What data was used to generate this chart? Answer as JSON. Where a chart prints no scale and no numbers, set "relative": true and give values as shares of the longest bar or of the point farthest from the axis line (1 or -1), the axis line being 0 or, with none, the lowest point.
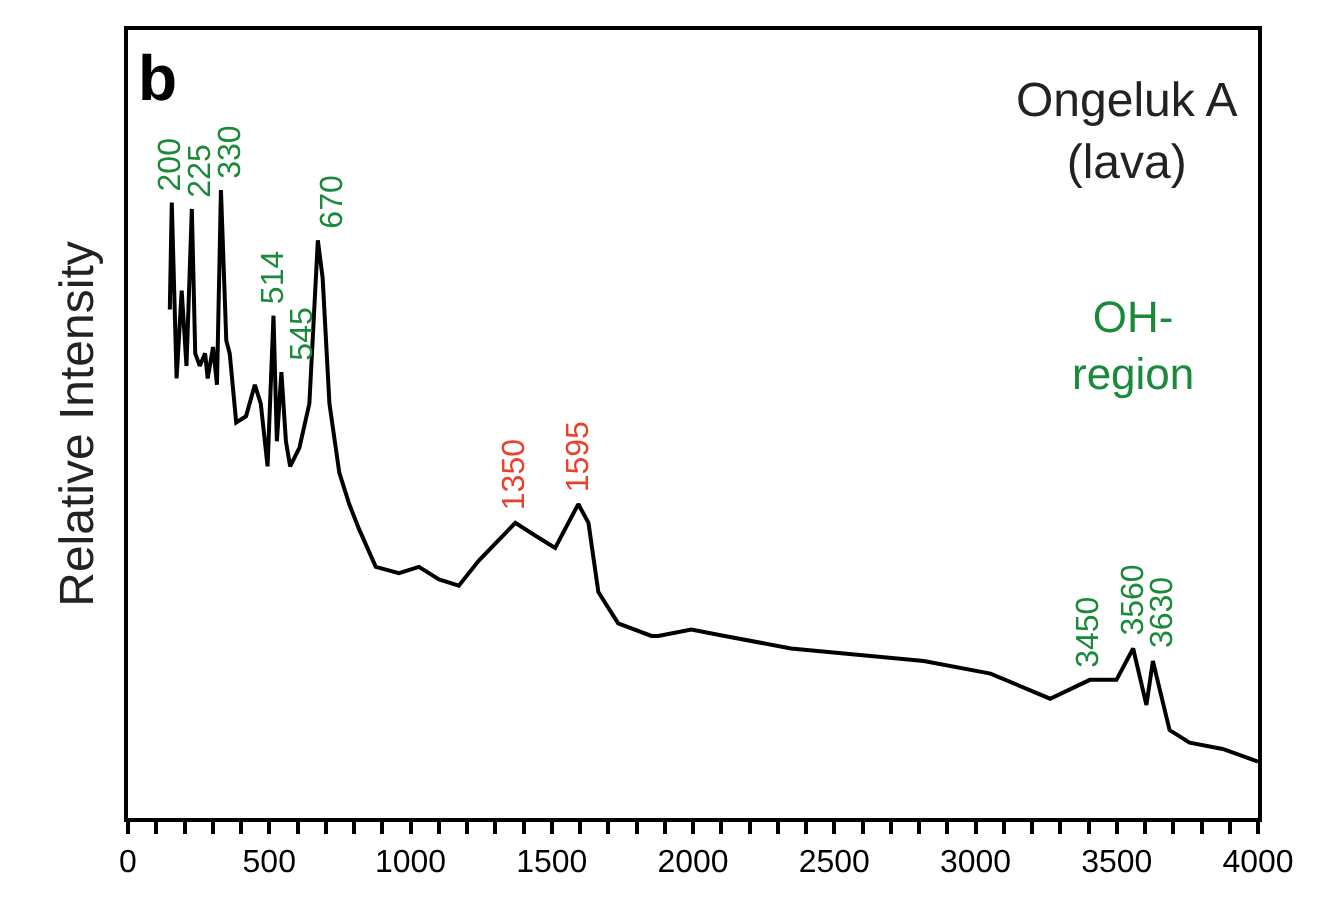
{
  "chart_data": {
    "type": "line",
    "relative": true,
    "ylabel": "Relative Intensity",
    "tick_labels": "x",
    "marker": "none",
    "line_style": "solid",
    "x": [
      148,
      155,
      172,
      190,
      207,
      226,
      238,
      254,
      273,
      282,
      301,
      315,
      329,
      348,
      360,
      383,
      418,
      449,
      470,
      494,
      515,
      527,
      543,
      559,
      574,
      607,
      642,
      672,
      689,
      713,
      748,
      783,
      818,
      877,
      959,
      1030,
      1101,
      1171,
      1242,
      1371,
      1441,
      1512,
      1594,
      1630,
      1665,
      1735,
      1853,
      1877,
      1994,
      2112,
      2347,
      2582,
      2817,
      3053,
      3264,
      3405,
      3499,
      3558,
      3605,
      3628,
      3687,
      3758,
      3875,
      4000
    ],
    "series": [
      {
        "color": "#000000",
        "values": [
          0.81,
          0.98,
          0.7,
          0.84,
          0.72,
          0.97,
          0.74,
          0.72,
          0.74,
          0.7,
          0.75,
          0.69,
          1.0,
          0.76,
          0.74,
          0.63,
          0.64,
          0.69,
          0.66,
          0.56,
          0.8,
          0.6,
          0.71,
          0.6,
          0.56,
          0.59,
          0.66,
          0.92,
          0.86,
          0.66,
          0.55,
          0.5,
          0.46,
          0.4,
          0.39,
          0.4,
          0.38,
          0.37,
          0.41,
          0.47,
          0.45,
          0.43,
          0.5,
          0.47,
          0.36,
          0.31,
          0.29,
          0.29,
          0.3,
          0.29,
          0.27,
          0.26,
          0.25,
          0.23,
          0.19,
          0.22,
          0.22,
          0.27,
          0.18,
          0.25,
          0.14,
          0.12,
          0.11,
          0.09
        ]
      }
    ],
    "xlim": [
      0,
      4000
    ],
    "xticks": [
      0,
      {
        "value": 100,
        "label": null
      },
      {
        "value": 200,
        "label": null
      },
      {
        "value": 300,
        "label": null
      },
      {
        "value": 400,
        "label": null
      },
      500,
      {
        "value": 600,
        "label": null
      },
      {
        "value": 700,
        "label": null
      },
      {
        "value": 800,
        "label": null
      },
      {
        "value": 900,
        "label": null
      },
      1000,
      {
        "value": 1100,
        "label": null
      },
      {
        "value": 1200,
        "label": null
      },
      {
        "value": 1300,
        "label": null
      },
      {
        "value": 1400,
        "label": null
      },
      1500,
      {
        "value": 1600,
        "label": null
      },
      {
        "value": 1700,
        "label": null
      },
      {
        "value": 1800,
        "label": null
      },
      {
        "value": 1900,
        "label": null
      },
      2000,
      {
        "value": 2100,
        "label": null
      },
      {
        "value": 2200,
        "label": null
      },
      {
        "value": 2300,
        "label": null
      },
      {
        "value": 2400,
        "label": null
      },
      2500,
      {
        "value": 2600,
        "label": null
      },
      {
        "value": 2700,
        "label": null
      },
      {
        "value": 2800,
        "label": null
      },
      {
        "value": 2900,
        "label": null
      },
      3000,
      {
        "value": 3100,
        "label": null
      },
      {
        "value": 3200,
        "label": null
      },
      {
        "value": 3300,
        "label": null
      },
      {
        "value": 3400,
        "label": null
      },
      3500,
      {
        "value": 3600,
        "label": null
      },
      {
        "value": 3700,
        "label": null
      },
      {
        "value": 3800,
        "label": null
      },
      {
        "value": 3900,
        "label": null
      },
      4000
    ],
    "annotations": [
      "b",
      "Ongeluk A\n(lava)",
      "OH-\nregion",
      {
        "text": "200",
        "x": 155,
        "y": 0.98
      },
      {
        "text": "225",
        "x": 226,
        "y": 0.97
      },
      {
        "text": "330",
        "x": 329,
        "y": 1.0
      },
      {
        "text": "514",
        "x": 515,
        "y": 0.8
      },
      {
        "text": "545",
        "x": 543,
        "y": 0.71
      },
      {
        "text": "670",
        "x": 672,
        "y": 0.92
      },
      {
        "text": "1350",
        "x": 1371,
        "y": 0.47
      },
      {
        "text": "1595",
        "x": 1594,
        "y": 0.5
      },
      {
        "text": "3450",
        "x": 3405,
        "y": 0.22
      },
      {
        "text": "3560",
        "x": 3558,
        "y": 0.27
      },
      {
        "text": "3630",
        "x": 3628,
        "y": 0.25
      }
    ]
  }
}
